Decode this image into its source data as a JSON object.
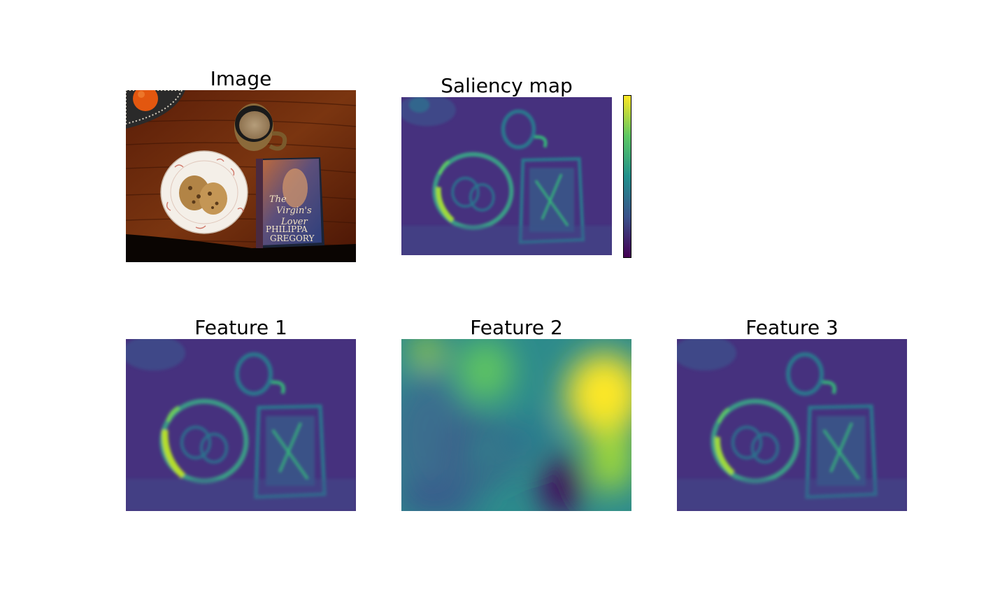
{
  "panels": {
    "image": {
      "title": "Image"
    },
    "saliency": {
      "title": "Saliency map"
    },
    "feature1": {
      "title": "Feature 1"
    },
    "feature2": {
      "title": "Feature 2"
    },
    "feature3": {
      "title": "Feature 3"
    }
  },
  "photo_text": {
    "book_title_line1": "The",
    "book_title_line2": "Virgin's",
    "book_title_line3": "Lover",
    "author_line1": "PHILIPPA",
    "author_line2": "GREGORY"
  },
  "colormap": {
    "name": "viridis",
    "stops": [
      "#440154",
      "#3b528b",
      "#21908c",
      "#5dc863",
      "#fde725"
    ]
  }
}
